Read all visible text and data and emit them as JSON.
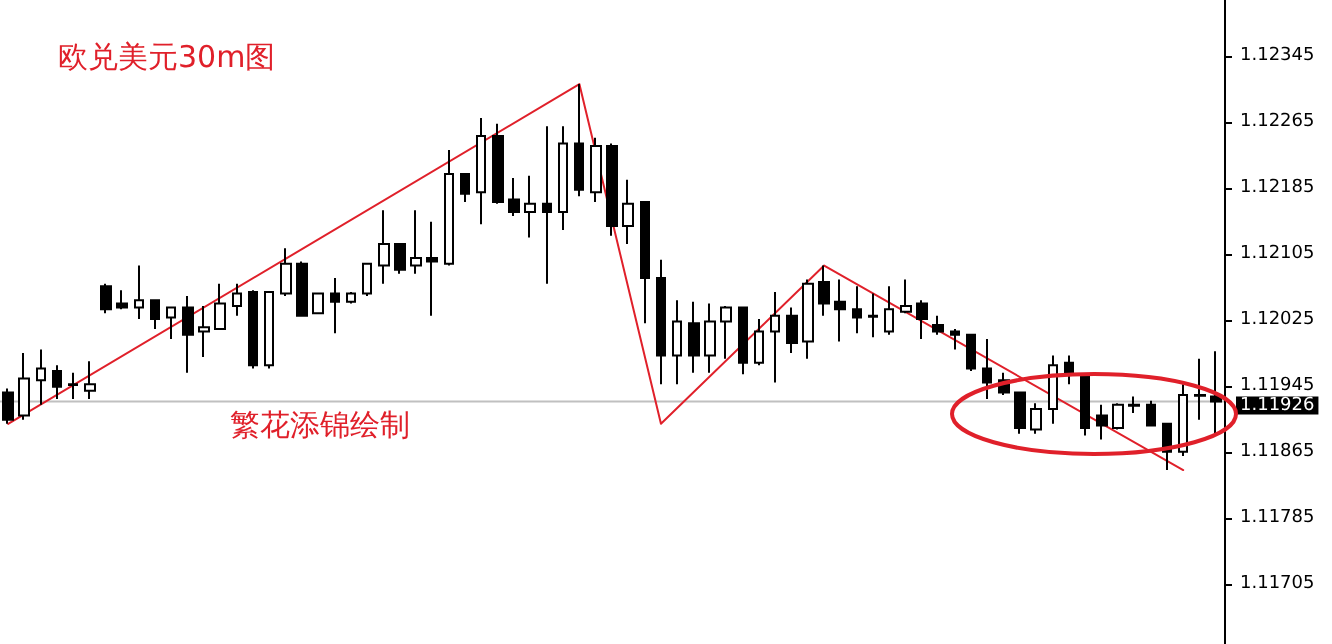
{
  "chart_data": {
    "type": "candlestick",
    "title": "欧兑美元30m图",
    "annotations": [
      "繁花添锦绘制"
    ],
    "categories": [
      null,
      null,
      null,
      null,
      null,
      null,
      null,
      null,
      null,
      null,
      null,
      null,
      null,
      null,
      null,
      null,
      null,
      null,
      null,
      null,
      null,
      null,
      null,
      null,
      null,
      null,
      null,
      null,
      null,
      null,
      null,
      null,
      null,
      null,
      null,
      null,
      null,
      null,
      null,
      null,
      null,
      null,
      null,
      null,
      null,
      null,
      null,
      null,
      null,
      null,
      null,
      null,
      null,
      null,
      null,
      null,
      null,
      null,
      null,
      null,
      null,
      null,
      null,
      null,
      null,
      null,
      null,
      null,
      null,
      null,
      null,
      null,
      null,
      null,
      null
    ],
    "color": "#000000",
    "ohlc": [
      [
        1.11937,
        1.11942,
        1.11899,
        1.11904
      ],
      [
        1.11909,
        1.11985,
        1.11904,
        1.11954
      ],
      [
        1.11952,
        1.11989,
        1.11922,
        1.11966
      ],
      [
        1.11963,
        1.1197,
        1.11929,
        1.11944
      ],
      [
        1.11947,
        1.11961,
        1.11929,
        1.11946
      ],
      [
        1.11939,
        1.11975,
        1.11929,
        1.11947
      ],
      [
        1.12066,
        1.12069,
        1.12033,
        1.12038
      ],
      [
        1.12045,
        1.12061,
        1.12038,
        1.1204
      ],
      [
        1.1204,
        1.12091,
        1.12026,
        1.12049
      ],
      [
        1.12049,
        1.12049,
        1.12014,
        1.12026
      ],
      [
        1.12028,
        1.1204,
        1.12002,
        1.1204
      ],
      [
        1.1204,
        1.12054,
        1.11961,
        1.12007
      ],
      [
        1.12011,
        1.12042,
        1.1198,
        1.12016
      ],
      [
        1.12014,
        1.12069,
        1.12014,
        1.12045
      ],
      [
        1.12042,
        1.12069,
        1.1203,
        1.12057
      ],
      [
        1.12059,
        1.12061,
        1.11966,
        1.1197
      ],
      [
        1.1197,
        1.12059,
        1.11966,
        1.12059
      ],
      [
        1.12057,
        1.12112,
        1.12054,
        1.12093
      ],
      [
        1.12093,
        1.12096,
        1.1203,
        1.1203
      ],
      [
        1.12033,
        1.12057,
        1.12033,
        1.12057
      ],
      [
        1.12057,
        1.12076,
        1.12009,
        1.12047
      ],
      [
        1.12047,
        1.12059,
        1.12045,
        1.12057
      ],
      [
        1.12057,
        1.12093,
        1.12054,
        1.12093
      ],
      [
        1.12091,
        1.12158,
        1.12069,
        1.12117
      ],
      [
        1.12117,
        1.12117,
        1.12081,
        1.12086
      ],
      [
        1.12091,
        1.12158,
        1.12081,
        1.121
      ],
      [
        1.121,
        1.12144,
        1.1203,
        1.12096
      ],
      [
        1.12093,
        1.12231,
        1.12091,
        1.12202
      ],
      [
        1.12202,
        1.12202,
        1.12168,
        1.12178
      ],
      [
        1.1218,
        1.1227,
        1.12141,
        1.12248
      ],
      [
        1.12248,
        1.12263,
        1.12166,
        1.12168
      ],
      [
        1.12171,
        1.12197,
        1.12151,
        1.12156
      ],
      [
        1.12156,
        1.122,
        1.12125,
        1.12166
      ],
      [
        1.12166,
        1.1226,
        1.12069,
        1.12156
      ],
      [
        1.12156,
        1.1226,
        1.12134,
        1.12239
      ],
      [
        1.12239,
        1.12311,
        1.12175,
        1.12183
      ],
      [
        1.1218,
        1.12246,
        1.12168,
        1.12236
      ],
      [
        1.12236,
        1.12239,
        1.12127,
        1.12139
      ],
      [
        1.12139,
        1.12195,
        1.12117,
        1.12166
      ],
      [
        1.12168,
        1.12168,
        1.12021,
        1.12076
      ],
      [
        1.12076,
        1.12098,
        1.11947,
        1.11982
      ],
      [
        1.11982,
        1.12049,
        1.11947,
        1.12023
      ],
      [
        1.12021,
        1.12047,
        1.11961,
        1.11982
      ],
      [
        1.11982,
        1.12045,
        1.11961,
        1.12023
      ],
      [
        1.12023,
        1.12042,
        1.11978,
        1.1204
      ],
      [
        1.1204,
        1.1204,
        1.11959,
        1.11973
      ],
      [
        1.11973,
        1.12026,
        1.1197,
        1.12011
      ],
      [
        1.12011,
        1.12059,
        1.11949,
        1.1203
      ],
      [
        1.1203,
        1.1204,
        1.11985,
        1.11997
      ],
      [
        1.11999,
        1.12074,
        1.11978,
        1.12069
      ],
      [
        1.12071,
        1.12091,
        1.1203,
        1.12045
      ],
      [
        1.12047,
        1.12074,
        1.11999,
        1.12038
      ],
      [
        1.12038,
        1.12066,
        1.12009,
        1.12028
      ],
      [
        1.1203,
        1.12057,
        1.12004,
        1.12029
      ],
      [
        1.12011,
        1.12066,
        1.12007,
        1.12038
      ],
      [
        1.12035,
        1.12074,
        1.12033,
        1.12042
      ],
      [
        1.12045,
        1.12049,
        1.12002,
        1.12026
      ],
      [
        1.12019,
        1.1203,
        1.12007,
        1.12011
      ],
      [
        1.12011,
        1.12014,
        1.11989,
        1.12007
      ],
      [
        1.12007,
        1.12007,
        1.11963,
        1.11966
      ],
      [
        1.11966,
        1.12002,
        1.11929,
        1.11949
      ],
      [
        1.11952,
        1.11961,
        1.11934,
        1.11937
      ],
      [
        1.11937,
        1.11937,
        1.11887,
        1.11894
      ],
      [
        1.11892,
        1.11924,
        1.11887,
        1.11917
      ],
      [
        1.11917,
        1.11982,
        1.11899,
        1.1197
      ],
      [
        1.11973,
        1.11982,
        1.11947,
        1.11961
      ],
      [
        1.11956,
        1.11956,
        1.11885,
        1.11894
      ],
      [
        1.11909,
        1.11922,
        1.1188,
        1.11897
      ],
      [
        1.11894,
        1.11924,
        1.11892,
        1.11922
      ],
      [
        1.11922,
        1.11932,
        1.11912,
        1.11921
      ],
      [
        1.11922,
        1.11927,
        1.11897,
        1.11897
      ],
      [
        1.11899,
        1.11899,
        1.11843,
        1.11865
      ],
      [
        1.11865,
        1.11947,
        1.1186,
        1.11934
      ],
      [
        1.11934,
        1.11978,
        1.11904,
        1.11933
      ],
      [
        1.11932,
        1.11987,
        1.11885,
        1.11926
      ]
    ],
    "series": [
      {
        "type": "line",
        "color": "#e0202a",
        "values": [
          1.11899,
          null,
          null,
          null,
          null,
          null,
          null,
          null,
          null,
          null,
          null,
          null,
          null,
          null,
          null,
          null,
          null,
          null,
          null,
          null,
          null,
          null,
          null,
          null,
          null,
          null,
          null,
          null,
          null,
          null,
          null,
          null,
          null,
          null,
          null,
          1.12311,
          null,
          null,
          null,
          null,
          1.11899,
          null,
          null,
          null,
          null,
          null,
          null,
          null,
          null,
          null,
          1.12091,
          null,
          null,
          null,
          null,
          null,
          null,
          null,
          null,
          null,
          null,
          null,
          null,
          null,
          null,
          null,
          null,
          null,
          null,
          null,
          null,
          null,
          1.11843,
          null,
          null
        ]
      }
    ],
    "ylim": [
      1.11632,
      1.12413
    ],
    "yticks": [
      1.11705,
      1.11785,
      1.11865,
      1.11945,
      1.12025,
      1.12105,
      1.12185,
      1.12265,
      1.12345
    ],
    "ref_lines": [
      {
        "axis": "y",
        "value": 1.11926,
        "label": "1.11926",
        "color": "#c0c0c0"
      }
    ],
    "tick_labels": "y",
    "grid": false,
    "line_style": "solid"
  }
}
